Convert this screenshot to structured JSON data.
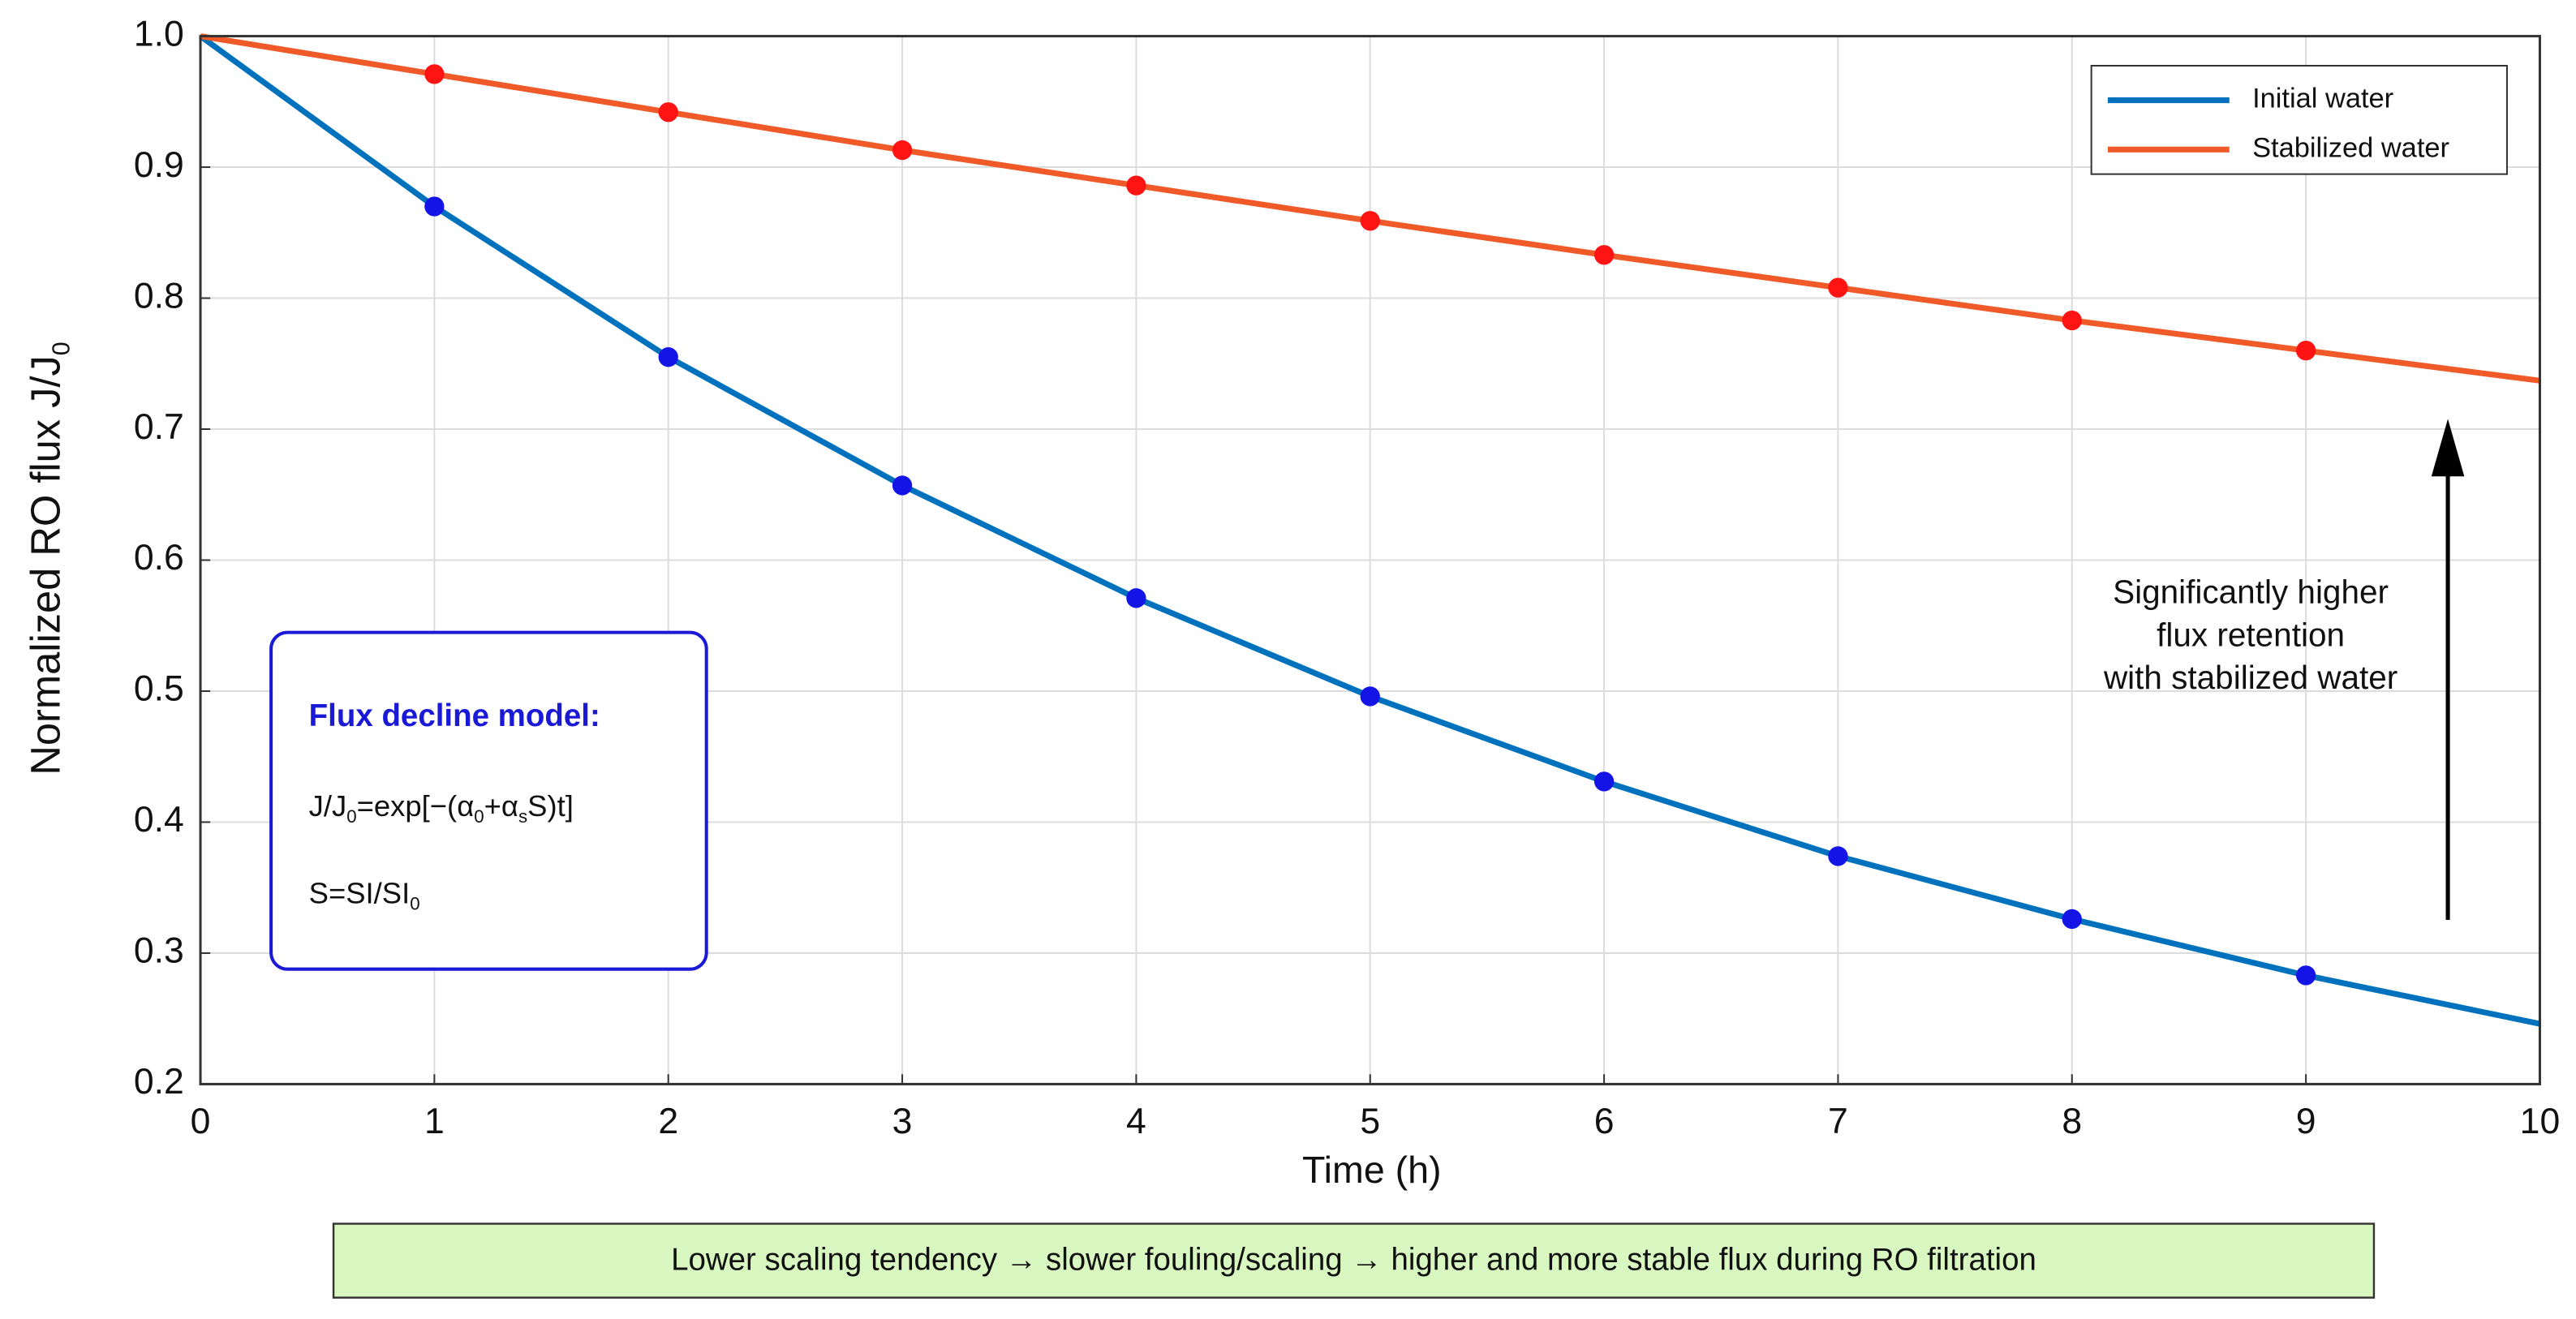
{
  "chart_data": {
    "type": "line",
    "xlabel": "Time (h)",
    "ylabel": {
      "text": "Normalized RO flux J/J",
      "sub": "0"
    },
    "x": [
      0,
      1,
      2,
      3,
      4,
      5,
      6,
      7,
      8,
      9,
      10
    ],
    "series": [
      {
        "name": "Initial water",
        "color": "#0072bd",
        "marker_color": "#1414e6",
        "values": [
          1.0,
          0.87,
          0.755,
          0.657,
          0.571,
          0.496,
          0.431,
          0.374,
          0.326,
          0.283,
          0.246
        ]
      },
      {
        "name": "Stabilized water",
        "color": "#ef5a28",
        "marker_color": "#ff1414",
        "values": [
          1.0,
          0.971,
          0.942,
          0.913,
          0.886,
          0.859,
          0.833,
          0.808,
          0.783,
          0.76,
          0.737
        ]
      }
    ],
    "xlim": [
      0,
      10
    ],
    "xticks": [
      0,
      1,
      2,
      3,
      4,
      5,
      6,
      7,
      8,
      9,
      10
    ],
    "ylim": [
      0.2,
      1.0
    ],
    "yticks": [
      0.2,
      0.3,
      0.4,
      0.5,
      0.6,
      0.7,
      0.8,
      0.9,
      {
        "value": 1.0,
        "label": "1.0"
      }
    ],
    "grid": true,
    "legend": "upper right",
    "model_box": {
      "title": "Flux decline model:",
      "equation": [
        {
          "text": "J/J"
        },
        {
          "sub": "0"
        },
        {
          "text": "=exp[−(α"
        },
        {
          "sub": "0"
        },
        {
          "text": "+α"
        },
        {
          "sub": "s"
        },
        {
          "text": "S)t]"
        }
      ],
      "definition": [
        {
          "text": "S=SI/SI"
        },
        {
          "sub": "0"
        }
      ]
    },
    "annotation": [
      "Significantly higher",
      "flux retention",
      "with stabilized water"
    ],
    "footer": "Lower scaling tendency → slower fouling/scaling → higher and more stable flux during RO filtration"
  }
}
